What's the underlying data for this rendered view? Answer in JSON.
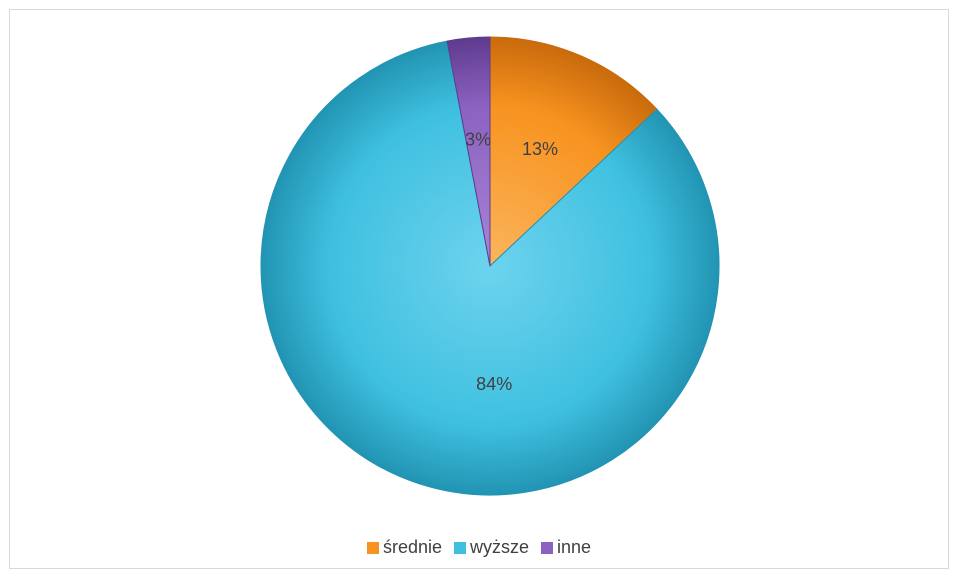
{
  "chart_data": {
    "type": "pie",
    "title": "",
    "legend_position": "bottom",
    "start_angle_deg": 0,
    "direction": "clockwise",
    "slices": [
      {
        "label": "średnie",
        "value": 13,
        "value_label": "13%",
        "color": "#f79320",
        "dark": "#c96a0c",
        "light": "#fbb55c"
      },
      {
        "label": "wyższe",
        "value": 84,
        "value_label": "84%",
        "color": "#3fc0e0",
        "dark": "#2294b3",
        "light": "#6dd3ee"
      },
      {
        "label": "inne",
        "value": 3,
        "value_label": "3%",
        "color": "#8b62c0",
        "dark": "#5f3b8f",
        "light": "#a884d6"
      }
    ],
    "legend": [
      {
        "label": "średnie",
        "color": "#f79320"
      },
      {
        "label": "wyższe",
        "color": "#3fc0e0"
      },
      {
        "label": "inne",
        "color": "#8b62c0"
      }
    ]
  }
}
